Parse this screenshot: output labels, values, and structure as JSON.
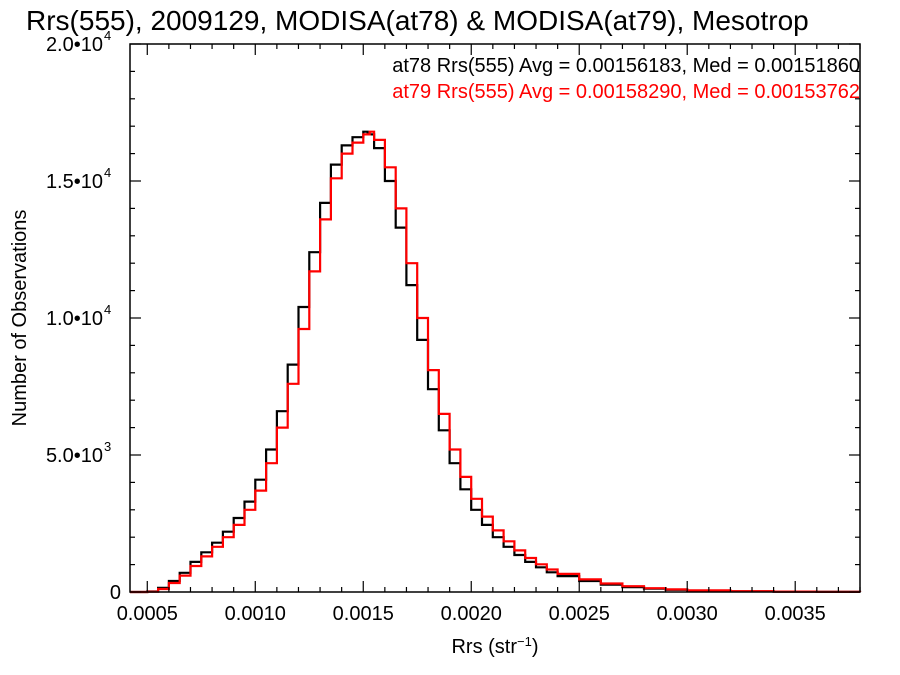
{
  "chart_data": {
    "type": "line",
    "step": true,
    "title": "Rrs(555), 2009129, MODISA(at78) & MODISA(at79), Mesotrop",
    "xlabel": {
      "base": "Rrs (str",
      "sup": "−1",
      "tail": ")"
    },
    "ylabel": "Number of Observations",
    "xlim": [
      0.00042,
      0.0038
    ],
    "ylim": [
      0,
      20000
    ],
    "grid": false,
    "x_ticks": [
      {
        "value": 0.0005,
        "label": "0.0005"
      },
      {
        "value": 0.001,
        "label": "0.0010"
      },
      {
        "value": 0.0015,
        "label": "0.0015"
      },
      {
        "value": 0.002,
        "label": "0.0020"
      },
      {
        "value": 0.0025,
        "label": "0.0025"
      },
      {
        "value": 0.003,
        "label": "0.0030"
      },
      {
        "value": 0.0035,
        "label": "0.0035"
      }
    ],
    "y_ticks": [
      {
        "value": 0,
        "mant": "0",
        "exp": ""
      },
      {
        "value": 5000,
        "mant": "5.0•10",
        "exp": "3"
      },
      {
        "value": 10000,
        "mant": "1.0•10",
        "exp": "4"
      },
      {
        "value": 15000,
        "mant": "1.5•10",
        "exp": "4"
      },
      {
        "value": 20000,
        "mant": "2.0•10",
        "exp": "4"
      }
    ],
    "annotations": [
      {
        "series": 0,
        "text": "at78 Rrs(555) Avg = 0.00156183, Med = 0.00151860"
      },
      {
        "series": 1,
        "text": "at79 Rrs(555) Avg = 0.00158290, Med = 0.00153762"
      }
    ],
    "series": [
      {
        "color": "#000000",
        "x": [
          0.00042,
          0.0005,
          0.00055,
          0.0006,
          0.00065,
          0.0007,
          0.00075,
          0.0008,
          0.00085,
          0.0009,
          0.00095,
          0.001,
          0.00105,
          0.0011,
          0.00115,
          0.0012,
          0.00125,
          0.0013,
          0.00135,
          0.0014,
          0.00145,
          0.0015,
          0.00152,
          0.00155,
          0.0016,
          0.00165,
          0.0017,
          0.00175,
          0.0018,
          0.00185,
          0.0019,
          0.00195,
          0.002,
          0.00205,
          0.0021,
          0.00215,
          0.0022,
          0.00225,
          0.0023,
          0.00235,
          0.0024,
          0.0025,
          0.0026,
          0.0027,
          0.0028,
          0.0029,
          0.003,
          0.0032,
          0.0034,
          0.0036,
          0.0038
        ],
        "y": [
          0,
          20,
          150,
          400,
          700,
          1100,
          1450,
          1800,
          2200,
          2700,
          3300,
          4100,
          5200,
          6600,
          8300,
          10400,
          12400,
          14200,
          15600,
          16300,
          16600,
          16800,
          16700,
          16200,
          15000,
          13300,
          11200,
          9200,
          7400,
          5900,
          4700,
          3750,
          3000,
          2450,
          2000,
          1650,
          1350,
          1100,
          900,
          720,
          580,
          400,
          270,
          180,
          120,
          80,
          50,
          25,
          12,
          5,
          0
        ]
      },
      {
        "color": "#ff0000",
        "x": [
          0.00042,
          0.0005,
          0.00055,
          0.0006,
          0.00065,
          0.0007,
          0.00075,
          0.0008,
          0.00085,
          0.0009,
          0.00095,
          0.001,
          0.00105,
          0.0011,
          0.00115,
          0.0012,
          0.00125,
          0.0013,
          0.00135,
          0.0014,
          0.00145,
          0.0015,
          0.00153,
          0.00155,
          0.0016,
          0.00165,
          0.0017,
          0.00175,
          0.0018,
          0.00185,
          0.0019,
          0.00195,
          0.002,
          0.00205,
          0.0021,
          0.00215,
          0.0022,
          0.00225,
          0.0023,
          0.00235,
          0.0024,
          0.0025,
          0.0026,
          0.0027,
          0.0028,
          0.0029,
          0.003,
          0.0032,
          0.0034,
          0.0036,
          0.0038
        ],
        "y": [
          0,
          10,
          110,
          330,
          600,
          950,
          1300,
          1650,
          2000,
          2450,
          3000,
          3700,
          4700,
          6000,
          7600,
          9600,
          11700,
          13600,
          15100,
          16000,
          16400,
          16700,
          16800,
          16500,
          15500,
          14000,
          12000,
          10000,
          8100,
          6500,
          5200,
          4200,
          3400,
          2750,
          2250,
          1850,
          1520,
          1240,
          1010,
          820,
          660,
          460,
          310,
          210,
          140,
          95,
          60,
          30,
          15,
          6,
          0
        ]
      }
    ]
  }
}
